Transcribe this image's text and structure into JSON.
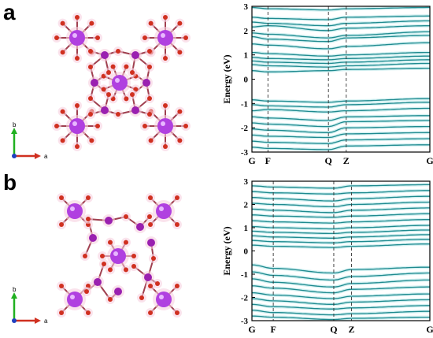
{
  "panels": [
    {
      "letter": "a",
      "axis_labels": {
        "b": "b",
        "a": "a"
      }
    },
    {
      "letter": "b",
      "axis_labels": {
        "b": "b",
        "a": "a"
      }
    }
  ],
  "colors": {
    "band": "#1f8a8f",
    "band_glow": "#cfeff0",
    "large_atom": "#b040e0",
    "medium_atom": "#9a20b0",
    "small_atom": "#d03020",
    "bond": "#a04050",
    "axis_b": "#20b020",
    "axis_a": "#d03020"
  },
  "chart_data": [
    {
      "type": "line",
      "panel": "a",
      "ylabel": "Energy (eV)",
      "ylim": [
        -3,
        3
      ],
      "yticks": [
        "3",
        "2",
        "1",
        "0",
        "-1",
        "-2",
        "-3"
      ],
      "kpoints": [
        "G",
        "F",
        "Q",
        "Z",
        "G"
      ],
      "kpoint_positions": [
        0,
        0.09,
        0.43,
        0.53,
        1
      ],
      "dashed_at": [
        "F",
        "Q",
        "Z"
      ],
      "bands": [
        [
          2.95,
          2.9,
          2.85,
          2.9,
          2.95
        ],
        [
          2.55,
          2.5,
          2.45,
          2.55,
          2.6
        ],
        [
          2.35,
          2.3,
          2.2,
          2.3,
          2.4
        ],
        [
          2.15,
          2.2,
          2.0,
          2.1,
          2.2
        ],
        [
          1.9,
          1.85,
          1.7,
          1.8,
          1.95
        ],
        [
          1.75,
          1.65,
          1.55,
          1.7,
          1.8
        ],
        [
          1.45,
          1.4,
          1.25,
          1.35,
          1.5
        ],
        [
          1.1,
          1.05,
          0.95,
          1.0,
          1.1
        ],
        [
          0.9,
          0.85,
          0.8,
          0.85,
          0.95
        ],
        [
          0.75,
          0.7,
          0.65,
          0.7,
          0.8
        ],
        [
          0.6,
          0.55,
          0.5,
          0.55,
          0.65
        ],
        [
          0.35,
          0.3,
          0.35,
          0.4,
          0.45
        ],
        [
          -0.85,
          -0.9,
          -0.95,
          -0.9,
          -0.8
        ],
        [
          -1.05,
          -1.1,
          -1.15,
          -1.05,
          -0.95
        ],
        [
          -1.3,
          -1.25,
          -1.35,
          -1.3,
          -1.2
        ],
        [
          -1.55,
          -1.6,
          -1.7,
          -1.55,
          -1.5
        ],
        [
          -1.8,
          -1.85,
          -1.95,
          -1.75,
          -1.7
        ],
        [
          -2.05,
          -2.1,
          -2.2,
          -2.0,
          -1.95
        ],
        [
          -2.3,
          -2.35,
          -2.4,
          -2.25,
          -2.2
        ],
        [
          -2.55,
          -2.6,
          -2.65,
          -2.5,
          -2.45
        ],
        [
          -2.8,
          -2.85,
          -2.9,
          -2.75,
          -2.7
        ]
      ]
    },
    {
      "type": "line",
      "panel": "b",
      "ylabel": "Energy (eV)",
      "ylim": [
        -3,
        3
      ],
      "yticks": [
        "3",
        "2",
        "1",
        "0",
        "-1",
        "-2",
        "-3"
      ],
      "kpoints": [
        "G",
        "F",
        "Q",
        "Z",
        "G"
      ],
      "kpoint_positions": [
        0,
        0.12,
        0.46,
        0.56,
        1
      ],
      "dashed_at": [
        "F",
        "Q",
        "Z"
      ],
      "bands": [
        [
          2.8,
          2.75,
          2.7,
          2.8,
          2.85
        ],
        [
          2.55,
          2.5,
          2.45,
          2.5,
          2.6
        ],
        [
          2.3,
          2.25,
          2.15,
          2.25,
          2.35
        ],
        [
          2.05,
          2.0,
          1.9,
          2.0,
          2.1
        ],
        [
          1.8,
          1.75,
          1.65,
          1.75,
          1.85
        ],
        [
          1.55,
          1.5,
          1.45,
          1.5,
          1.6
        ],
        [
          1.3,
          1.25,
          1.2,
          1.25,
          1.35
        ],
        [
          1.05,
          1.0,
          0.95,
          1.0,
          1.1
        ],
        [
          0.85,
          0.8,
          0.75,
          0.8,
          0.9
        ],
        [
          0.65,
          0.6,
          0.55,
          0.6,
          0.7
        ],
        [
          0.45,
          0.4,
          0.35,
          0.4,
          0.5
        ],
        [
          0.25,
          0.2,
          0.15,
          0.2,
          0.3
        ],
        [
          -0.6,
          -0.75,
          -0.95,
          -0.8,
          -0.7
        ],
        [
          -0.9,
          -1.05,
          -1.25,
          -1.1,
          -0.95
        ],
        [
          -1.2,
          -1.35,
          -1.55,
          -1.4,
          -1.25
        ],
        [
          -1.5,
          -1.6,
          -1.8,
          -1.65,
          -1.55
        ],
        [
          -1.8,
          -1.9,
          -2.05,
          -1.95,
          -1.85
        ],
        [
          -2.05,
          -2.15,
          -2.3,
          -2.2,
          -2.1
        ],
        [
          -2.3,
          -2.4,
          -2.5,
          -2.45,
          -2.35
        ],
        [
          -2.55,
          -2.65,
          -2.75,
          -2.7,
          -2.6
        ],
        [
          -2.8,
          -2.85,
          -2.95,
          -2.9,
          -2.85
        ]
      ]
    }
  ]
}
